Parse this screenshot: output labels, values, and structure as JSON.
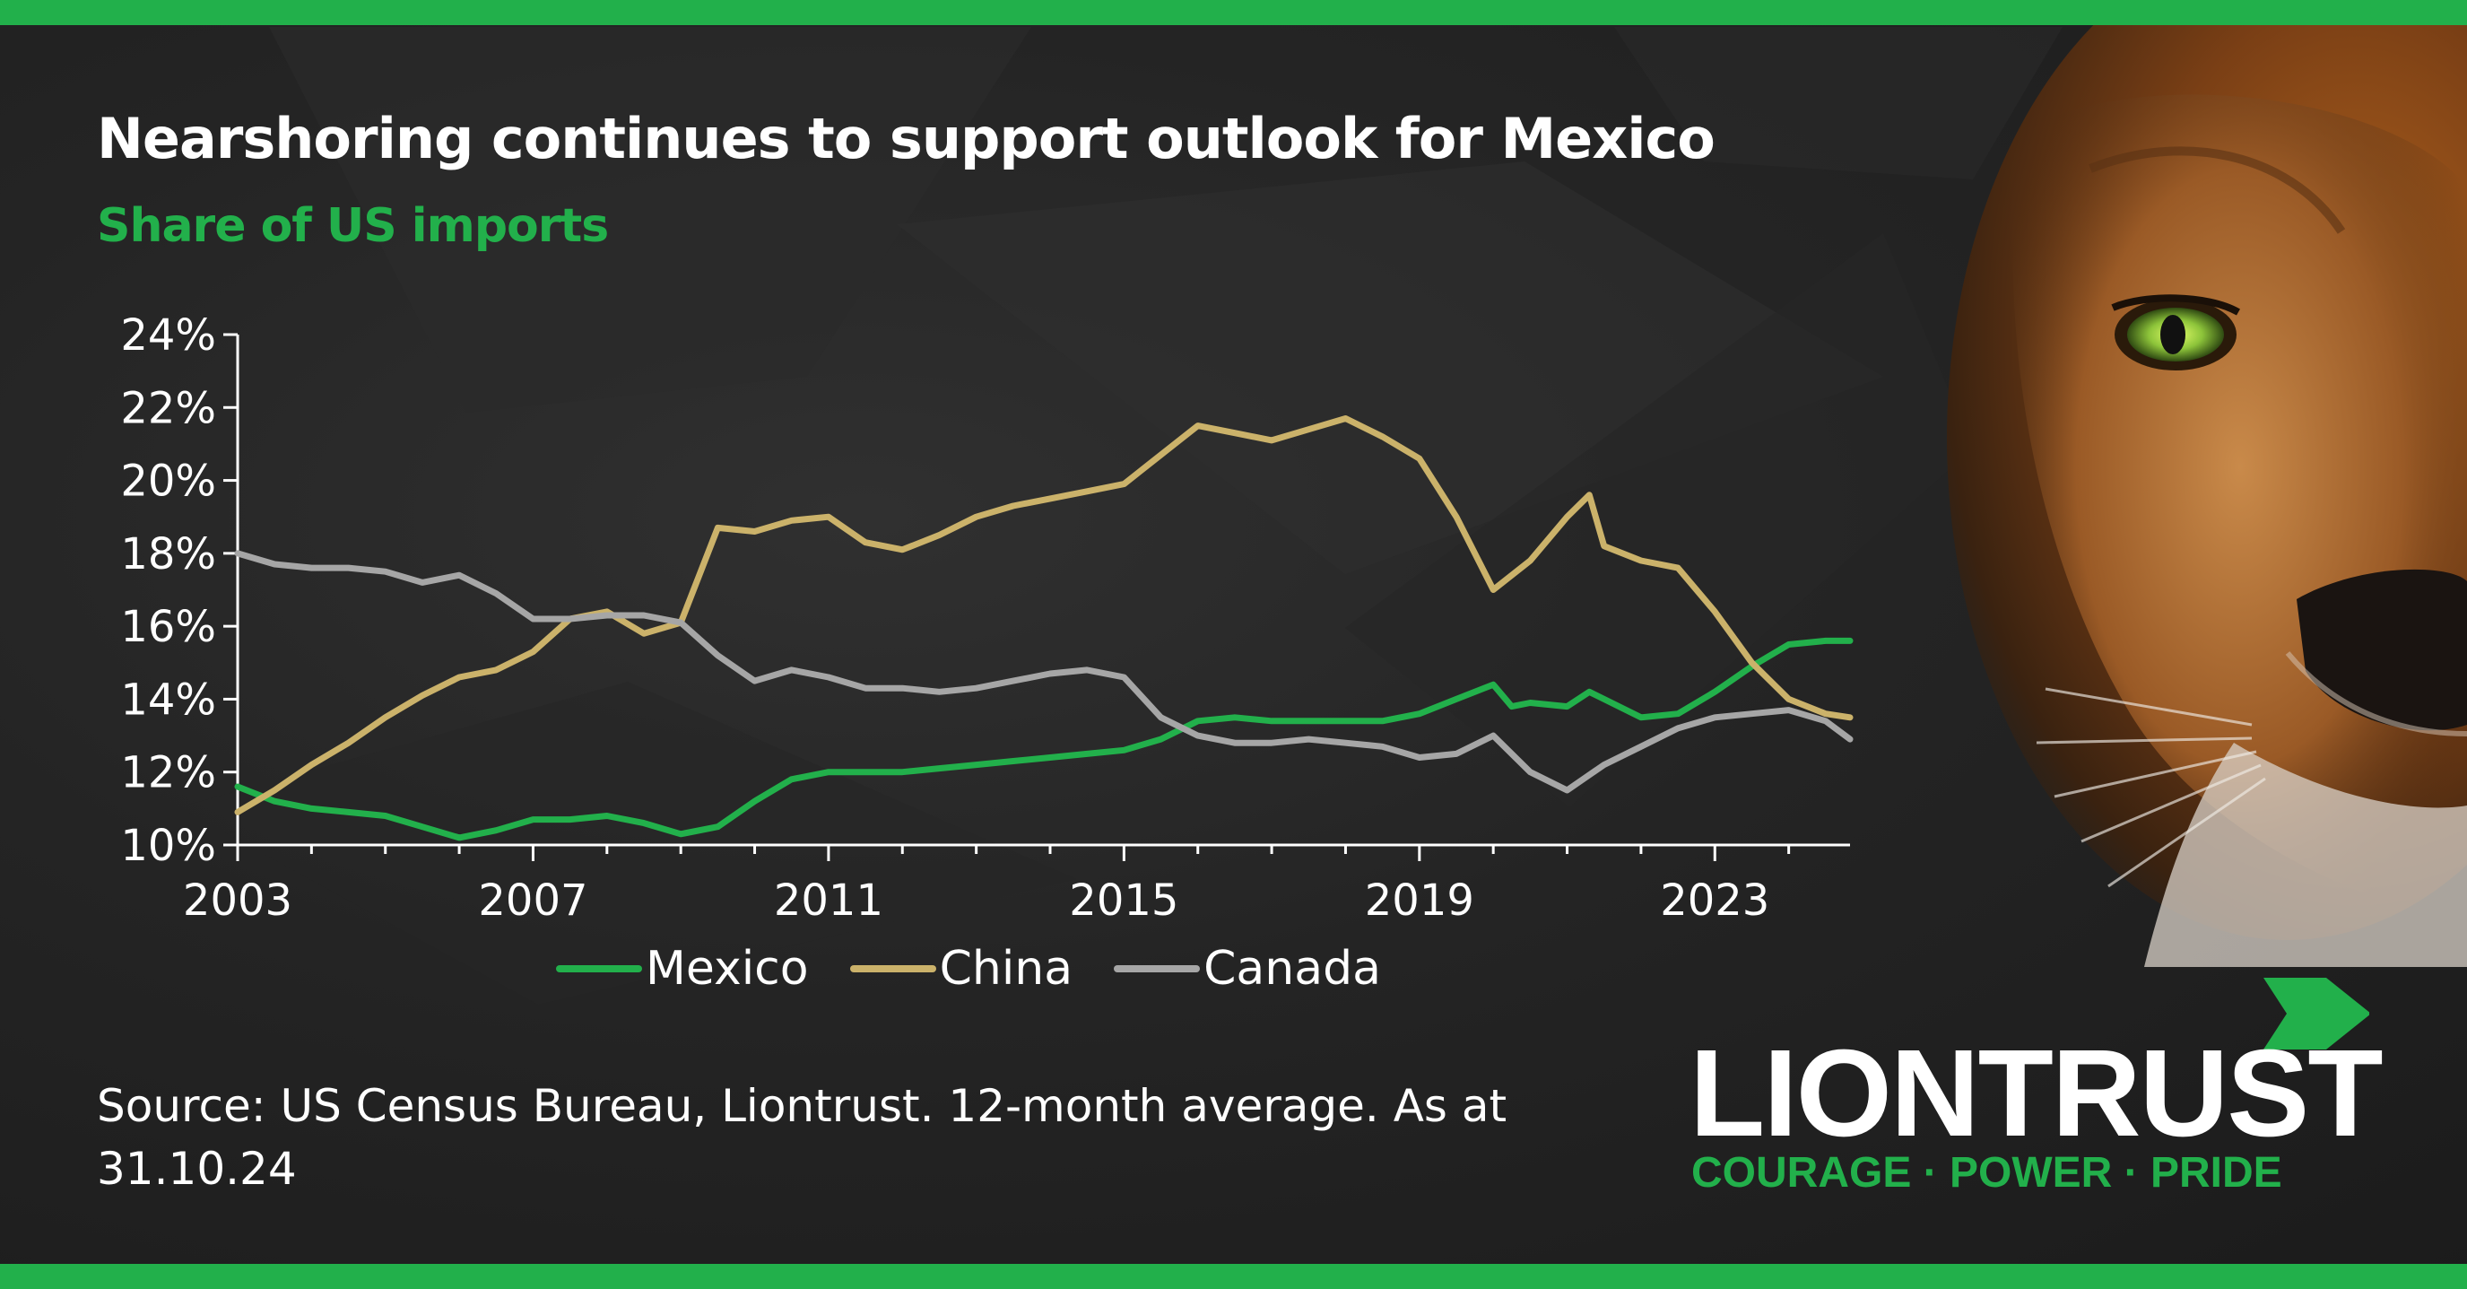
{
  "header": {
    "title": "Nearshoring continues to support outlook for Mexico",
    "subtitle": "Share of US imports"
  },
  "footer": {
    "source": "Source: US Census Bureau, Liontrust. 12-month average. As at 31.10.24"
  },
  "brand": {
    "name": "LIONTRUST",
    "tagline": "COURAGE · POWER · PRIDE",
    "accent_color": "#22b04b",
    "arrow_icon": "chevron-right-icon"
  },
  "colors": {
    "background": "#222222",
    "mexico": "#22b04b",
    "china": "#cbb26a",
    "canada": "#a6a6a6"
  },
  "chart_data": {
    "type": "line",
    "title": "Nearshoring continues to support outlook for Mexico",
    "subtitle": "Share of US imports",
    "xlabel": "",
    "ylabel": "",
    "x_ticks": [
      "2003",
      "2007",
      "2011",
      "2015",
      "2019",
      "2023"
    ],
    "y_ticks": [
      "10%",
      "12%",
      "14%",
      "16%",
      "18%",
      "20%",
      "22%",
      "24%"
    ],
    "xlim": [
      2003,
      2024.83
    ],
    "ylim": [
      10,
      24
    ],
    "grid": false,
    "legend_position": "bottom",
    "series": [
      {
        "name": "Mexico",
        "color": "#22b04b",
        "x": [
          2003,
          2003.5,
          2004,
          2004.5,
          2005,
          2005.5,
          2006,
          2006.5,
          2007,
          2007.5,
          2008,
          2008.5,
          2009,
          2009.5,
          2010,
          2010.5,
          2011,
          2011.5,
          2012,
          2012.5,
          2013,
          2013.5,
          2014,
          2014.5,
          2015,
          2015.5,
          2016,
          2016.5,
          2017,
          2017.5,
          2018,
          2018.5,
          2019,
          2019.5,
          2020,
          2020.25,
          2020.5,
          2021,
          2021.3,
          2021.5,
          2022,
          2022.5,
          2023,
          2023.5,
          2024,
          2024.5,
          2024.83
        ],
        "values": [
          11.6,
          11.2,
          11.0,
          10.9,
          10.8,
          10.5,
          10.2,
          10.4,
          10.7,
          10.7,
          10.8,
          10.6,
          10.3,
          10.5,
          11.2,
          11.8,
          12.0,
          12.0,
          12.0,
          12.1,
          12.2,
          12.3,
          12.4,
          12.5,
          12.6,
          12.9,
          13.4,
          13.5,
          13.4,
          13.4,
          13.4,
          13.4,
          13.6,
          14.0,
          14.4,
          13.8,
          13.9,
          13.8,
          14.2,
          14.0,
          13.5,
          13.6,
          14.2,
          14.9,
          15.5,
          15.6,
          15.6
        ]
      },
      {
        "name": "China",
        "color": "#cbb26a",
        "x": [
          2003,
          2003.5,
          2004,
          2004.5,
          2005,
          2005.5,
          2006,
          2006.5,
          2007,
          2007.5,
          2008,
          2008.5,
          2009,
          2009.5,
          2010,
          2010.5,
          2011,
          2011.5,
          2012,
          2012.5,
          2013,
          2013.5,
          2014,
          2014.5,
          2015,
          2015.5,
          2016,
          2016.5,
          2017,
          2017.5,
          2018,
          2018.5,
          2019,
          2019.5,
          2020,
          2020.5,
          2021,
          2021.3,
          2021.5,
          2022,
          2022.5,
          2023,
          2023.5,
          2024,
          2024.5,
          2024.83
        ],
        "values": [
          10.9,
          11.5,
          12.2,
          12.8,
          13.5,
          14.1,
          14.6,
          14.8,
          15.3,
          16.2,
          16.4,
          15.8,
          16.1,
          18.7,
          18.6,
          18.9,
          19.0,
          18.3,
          18.1,
          18.5,
          19.0,
          19.3,
          19.5,
          19.7,
          19.9,
          20.7,
          21.5,
          21.3,
          21.1,
          21.4,
          21.7,
          21.2,
          20.6,
          19.0,
          17.0,
          17.8,
          19.0,
          19.6,
          18.2,
          17.8,
          17.6,
          16.4,
          15.0,
          14.0,
          13.6,
          13.5
        ]
      },
      {
        "name": "Canada",
        "color": "#a6a6a6",
        "x": [
          2003,
          2003.5,
          2004,
          2004.5,
          2005,
          2005.5,
          2006,
          2006.5,
          2007,
          2007.5,
          2008,
          2008.5,
          2009,
          2009.5,
          2010,
          2010.5,
          2011,
          2011.5,
          2012,
          2012.5,
          2013,
          2013.5,
          2014,
          2014.5,
          2015,
          2015.5,
          2016,
          2016.5,
          2017,
          2017.5,
          2018,
          2018.5,
          2019,
          2019.5,
          2020,
          2020.5,
          2021,
          2021.5,
          2022,
          2022.5,
          2023,
          2023.5,
          2024,
          2024.5,
          2024.83
        ],
        "values": [
          18.0,
          17.7,
          17.6,
          17.6,
          17.5,
          17.2,
          17.4,
          16.9,
          16.2,
          16.2,
          16.3,
          16.3,
          16.1,
          15.2,
          14.5,
          14.8,
          14.6,
          14.3,
          14.3,
          14.2,
          14.3,
          14.5,
          14.7,
          14.8,
          14.6,
          13.5,
          13.0,
          12.8,
          12.8,
          12.9,
          12.8,
          12.7,
          12.4,
          12.5,
          13.0,
          12.0,
          11.5,
          12.2,
          12.7,
          13.2,
          13.5,
          13.6,
          13.7,
          13.4,
          12.9
        ]
      }
    ]
  }
}
